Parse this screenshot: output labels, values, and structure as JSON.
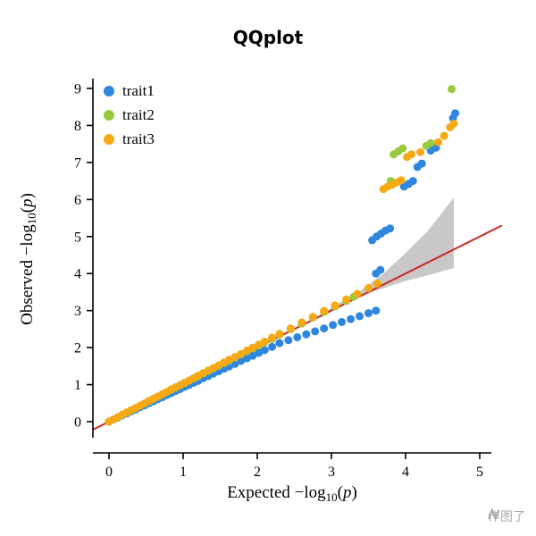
{
  "page": {
    "title": "QQplot",
    "watermark_text": "作图了"
  },
  "legend": {
    "items": [
      {
        "label": "trait1",
        "color": "#2e86de"
      },
      {
        "label": "trait2",
        "color": "#97ca3d"
      },
      {
        "label": "trait3",
        "color": "#f5a915"
      }
    ]
  },
  "axis": {
    "x": {
      "label_prefix": "Expected",
      "ticks": [
        0,
        1,
        2,
        3,
        4,
        5
      ]
    },
    "y": {
      "label_prefix": "Observed",
      "ticks": [
        0,
        1,
        2,
        3,
        4,
        5,
        6,
        7,
        8,
        9
      ]
    },
    "math": {
      "func": "−log",
      "sub": "10",
      "open": "(",
      "var": "p",
      "close": ")"
    }
  },
  "chart_data": {
    "type": "scatter",
    "title": "QQplot",
    "xlabel": "Expected −log10(p)",
    "ylabel": "Observed −log10(p)",
    "xlim": [
      -0.25,
      5.35
    ],
    "ylim": [
      -0.45,
      9.3
    ],
    "grid": false,
    "legend_position": "top-left",
    "identity_line": {
      "color": "#cc2a20",
      "from": [
        -0.22,
        -0.22
      ],
      "to": [
        5.3,
        5.3
      ]
    },
    "confidence_band": {
      "color": "#c8c8c8",
      "polygon": [
        [
          2.85,
          2.9
        ],
        [
          3.1,
          3.2
        ],
        [
          3.4,
          3.55
        ],
        [
          3.7,
          4.0
        ],
        [
          4.0,
          4.55
        ],
        [
          4.3,
          5.15
        ],
        [
          4.65,
          6.05
        ],
        [
          4.65,
          4.15
        ],
        [
          4.3,
          3.95
        ],
        [
          4.0,
          3.8
        ],
        [
          3.7,
          3.6
        ],
        [
          3.4,
          3.4
        ],
        [
          3.1,
          3.1
        ],
        [
          2.85,
          2.8
        ]
      ]
    },
    "series": [
      {
        "name": "trait1",
        "color": "#2e86de",
        "points": [
          [
            0,
            0
          ],
          [
            0.06,
            0.06
          ],
          [
            0.12,
            0.11
          ],
          [
            0.18,
            0.17
          ],
          [
            0.24,
            0.22
          ],
          [
            0.3,
            0.28
          ],
          [
            0.36,
            0.33
          ],
          [
            0.42,
            0.39
          ],
          [
            0.48,
            0.44
          ],
          [
            0.54,
            0.5
          ],
          [
            0.6,
            0.55
          ],
          [
            0.66,
            0.61
          ],
          [
            0.72,
            0.66
          ],
          [
            0.78,
            0.72
          ],
          [
            0.84,
            0.77
          ],
          [
            0.9,
            0.83
          ],
          [
            0.96,
            0.88
          ],
          [
            1.02,
            0.94
          ],
          [
            1.08,
            0.99
          ],
          [
            1.14,
            1.05
          ],
          [
            1.2,
            1.1
          ],
          [
            1.27,
            1.17
          ],
          [
            1.34,
            1.23
          ],
          [
            1.41,
            1.3
          ],
          [
            1.48,
            1.36
          ],
          [
            1.55,
            1.43
          ],
          [
            1.62,
            1.49
          ],
          [
            1.7,
            1.56
          ],
          [
            1.78,
            1.64
          ],
          [
            1.86,
            1.71
          ],
          [
            1.94,
            1.78
          ],
          [
            2.02,
            1.86
          ],
          [
            2.1,
            1.93
          ],
          [
            2.2,
            2.02
          ],
          [
            2.3,
            2.12
          ],
          [
            2.42,
            2.2
          ],
          [
            2.54,
            2.28
          ],
          [
            2.66,
            2.36
          ],
          [
            2.78,
            2.44
          ],
          [
            2.9,
            2.52
          ],
          [
            3.02,
            2.61
          ],
          [
            3.14,
            2.69
          ],
          [
            3.26,
            2.77
          ],
          [
            3.38,
            2.85
          ],
          [
            3.5,
            2.93
          ],
          [
            3.6,
            3.0
          ],
          [
            3.6,
            4.0
          ],
          [
            3.66,
            4.1
          ],
          [
            3.55,
            4.9
          ],
          [
            3.61,
            5.0
          ],
          [
            3.67,
            5.08
          ],
          [
            3.73,
            5.16
          ],
          [
            3.79,
            5.22
          ],
          [
            3.98,
            6.35
          ],
          [
            4.04,
            6.42
          ],
          [
            4.1,
            6.5
          ],
          [
            4.16,
            6.88
          ],
          [
            4.22,
            6.97
          ],
          [
            4.34,
            7.32
          ],
          [
            4.41,
            7.4
          ],
          [
            4.64,
            8.2
          ],
          [
            4.67,
            8.33
          ]
        ]
      },
      {
        "name": "trait2",
        "color": "#97ca3d",
        "points": [
          [
            0,
            0
          ],
          [
            0.06,
            0.06
          ],
          [
            0.12,
            0.12
          ],
          [
            0.18,
            0.18
          ],
          [
            0.24,
            0.24
          ],
          [
            0.3,
            0.31
          ],
          [
            0.36,
            0.37
          ],
          [
            0.42,
            0.43
          ],
          [
            0.48,
            0.49
          ],
          [
            0.54,
            0.55
          ],
          [
            0.6,
            0.61
          ],
          [
            0.66,
            0.67
          ],
          [
            0.72,
            0.73
          ],
          [
            0.78,
            0.8
          ],
          [
            0.84,
            0.86
          ],
          [
            0.9,
            0.92
          ],
          [
            0.96,
            0.98
          ],
          [
            1.02,
            1.04
          ],
          [
            1.08,
            1.1
          ],
          [
            1.14,
            1.16
          ],
          [
            1.2,
            1.22
          ],
          [
            1.27,
            1.3
          ],
          [
            1.34,
            1.37
          ],
          [
            1.41,
            1.44
          ],
          [
            1.48,
            1.51
          ],
          [
            1.55,
            1.58
          ],
          [
            1.62,
            1.65
          ],
          [
            1.7,
            1.73
          ],
          [
            1.78,
            1.82
          ],
          [
            1.86,
            1.9
          ],
          [
            1.94,
            1.98
          ],
          [
            2.02,
            2.06
          ],
          [
            2.1,
            2.14
          ],
          [
            2.2,
            2.24
          ],
          [
            2.3,
            2.35
          ],
          [
            2.45,
            2.5
          ],
          [
            2.6,
            2.65
          ],
          [
            2.75,
            2.81
          ],
          [
            2.9,
            2.96
          ],
          [
            3.05,
            3.11
          ],
          [
            3.2,
            3.26
          ],
          [
            3.3,
            3.37
          ],
          [
            3.8,
            6.5
          ],
          [
            3.84,
            7.22
          ],
          [
            3.9,
            7.3
          ],
          [
            3.96,
            7.38
          ],
          [
            4.28,
            7.45
          ],
          [
            4.34,
            7.52
          ],
          [
            4.62,
            8.98
          ]
        ]
      },
      {
        "name": "trait3",
        "color": "#f5a915",
        "points": [
          [
            0,
            0
          ],
          [
            0.06,
            0.06
          ],
          [
            0.12,
            0.12
          ],
          [
            0.18,
            0.19
          ],
          [
            0.24,
            0.25
          ],
          [
            0.3,
            0.31
          ],
          [
            0.36,
            0.37
          ],
          [
            0.42,
            0.43
          ],
          [
            0.48,
            0.49
          ],
          [
            0.54,
            0.56
          ],
          [
            0.6,
            0.62
          ],
          [
            0.66,
            0.68
          ],
          [
            0.72,
            0.74
          ],
          [
            0.78,
            0.8
          ],
          [
            0.84,
            0.87
          ],
          [
            0.9,
            0.93
          ],
          [
            0.96,
            0.99
          ],
          [
            1.02,
            1.05
          ],
          [
            1.08,
            1.11
          ],
          [
            1.14,
            1.17
          ],
          [
            1.2,
            1.24
          ],
          [
            1.27,
            1.31
          ],
          [
            1.34,
            1.38
          ],
          [
            1.41,
            1.45
          ],
          [
            1.48,
            1.52
          ],
          [
            1.55,
            1.6
          ],
          [
            1.62,
            1.67
          ],
          [
            1.7,
            1.75
          ],
          [
            1.78,
            1.83
          ],
          [
            1.86,
            1.92
          ],
          [
            1.94,
            2.0
          ],
          [
            2.02,
            2.08
          ],
          [
            2.1,
            2.16
          ],
          [
            2.2,
            2.27
          ],
          [
            2.3,
            2.37
          ],
          [
            2.45,
            2.52
          ],
          [
            2.6,
            2.68
          ],
          [
            2.75,
            2.83
          ],
          [
            2.9,
            2.99
          ],
          [
            3.05,
            3.14
          ],
          [
            3.2,
            3.3
          ],
          [
            3.35,
            3.45
          ],
          [
            3.5,
            3.61
          ],
          [
            3.62,
            3.73
          ],
          [
            3.7,
            6.28
          ],
          [
            3.76,
            6.35
          ],
          [
            3.82,
            6.4
          ],
          [
            3.88,
            6.46
          ],
          [
            3.94,
            6.52
          ],
          [
            4.02,
            7.15
          ],
          [
            4.08,
            7.22
          ],
          [
            4.2,
            7.28
          ],
          [
            4.44,
            7.55
          ],
          [
            4.52,
            7.72
          ],
          [
            4.6,
            7.95
          ],
          [
            4.65,
            8.05
          ]
        ]
      }
    ]
  }
}
